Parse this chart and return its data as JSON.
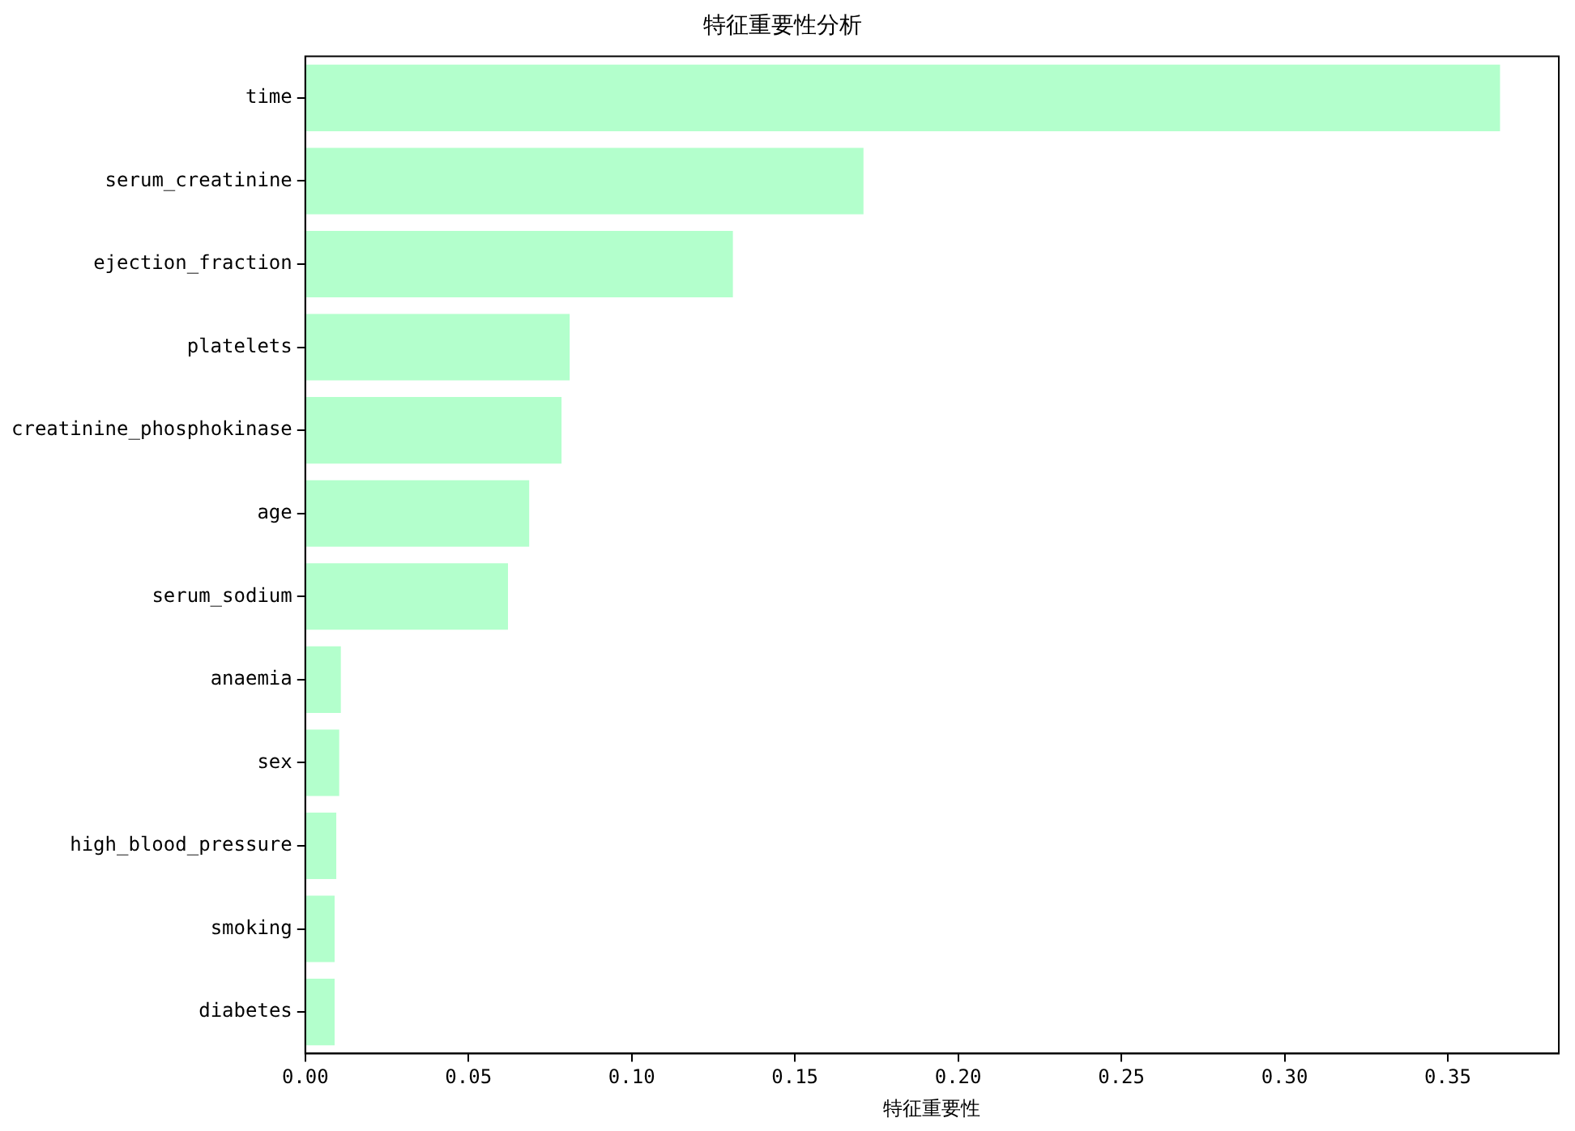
{
  "chart_data": {
    "type": "bar",
    "orientation": "horizontal",
    "title": "特征重要性分析",
    "xlabel": "特征重要性",
    "categories": [
      "time",
      "serum_creatinine",
      "ejection_fraction",
      "platelets",
      "creatinine_phosphokinase",
      "age",
      "serum_sodium",
      "anaemia",
      "sex",
      "high_blood_pressure",
      "smoking",
      "diabetes"
    ],
    "values": [
      0.366,
      0.171,
      0.131,
      0.081,
      0.0785,
      0.0686,
      0.0621,
      0.0109,
      0.0104,
      0.0095,
      0.009,
      0.009
    ],
    "color": "#b3ffcc",
    "xlim": [
      0,
      0.384
    ],
    "xticks": [
      {
        "value": 0,
        "label": "0.00"
      },
      0.05,
      {
        "value": 0.1,
        "label": "0.10"
      },
      0.15,
      {
        "value": 0.2,
        "label": "0.20"
      },
      0.25,
      {
        "value": 0.3,
        "label": "0.30"
      },
      0.35
    ],
    "grid": false,
    "legend": false
  }
}
